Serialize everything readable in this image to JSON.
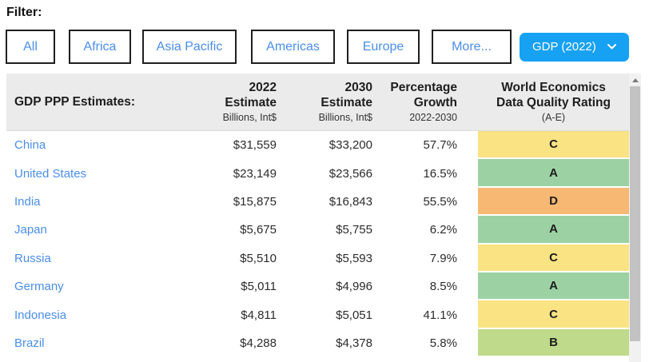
{
  "filter": {
    "label": "Filter:",
    "buttons": [
      "All",
      "Africa",
      "Asia Pacific",
      "Americas",
      "Europe",
      "More..."
    ],
    "dropdown": {
      "selected": "GDP (2022)"
    }
  },
  "table": {
    "title": "GDP PPP Estimates:",
    "columns": [
      {
        "line1": "2022",
        "line2": "Estimate",
        "sub": "Billions, Int$"
      },
      {
        "line1": "2030",
        "line2": "Estimate",
        "sub": "Billions, Int$"
      },
      {
        "line1": "Percentage",
        "line2": "Growth",
        "sub": "2022-2030"
      },
      {
        "line1": "World Economics",
        "line2": "Data Quality Rating",
        "sub": "(A-E)"
      }
    ],
    "rows": [
      {
        "country": "China",
        "est2022": "$31,559",
        "est2030": "$33,200",
        "growth": "57.7%",
        "rating": "C"
      },
      {
        "country": "United States",
        "est2022": "$23,149",
        "est2030": "$23,566",
        "growth": "16.5%",
        "rating": "A"
      },
      {
        "country": "India",
        "est2022": "$15,875",
        "est2030": "$16,843",
        "growth": "55.5%",
        "rating": "D"
      },
      {
        "country": "Japan",
        "est2022": "$5,675",
        "est2030": "$5,755",
        "growth": "6.2%",
        "rating": "A"
      },
      {
        "country": "Russia",
        "est2022": "$5,510",
        "est2030": "$5,593",
        "growth": "7.9%",
        "rating": "C"
      },
      {
        "country": "Germany",
        "est2022": "$5,011",
        "est2030": "$4,996",
        "growth": "8.5%",
        "rating": "A"
      },
      {
        "country": "Indonesia",
        "est2022": "$4,811",
        "est2030": "$5,051",
        "growth": "41.1%",
        "rating": "C"
      },
      {
        "country": "Brazil",
        "est2022": "$4,288",
        "est2030": "$4,378",
        "growth": "5.8%",
        "rating": "B"
      }
    ],
    "rating_colors": {
      "A": "#9cd2a3",
      "B": "#beda8a",
      "C": "#fae382",
      "D": "#f6b873"
    }
  },
  "colors": {
    "link_blue": "#4a8ee9",
    "dropdown_blue": "#16a1f3",
    "header_bg": "#ebebeb",
    "button_border": "#1f1f1f"
  }
}
